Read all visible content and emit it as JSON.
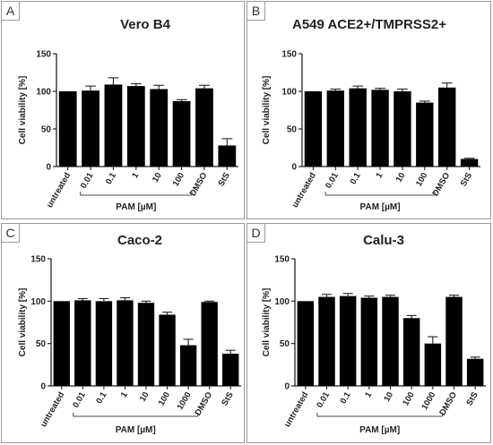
{
  "chart_data": [
    {
      "type": "bar",
      "panel_label": "A",
      "title": "Vero B4",
      "ylabel": "Cell viability [%]",
      "ylim": [
        0,
        150
      ],
      "yticks": [
        0,
        50,
        100,
        150
      ],
      "categories": [
        "untreated",
        "0.01",
        "0.1",
        "1",
        "10",
        "100",
        "DMSO",
        "StS"
      ],
      "values": [
        100,
        101,
        109,
        107,
        103,
        87,
        104,
        28
      ],
      "errors": [
        0,
        6,
        9,
        3,
        5,
        2,
        4,
        9
      ],
      "group_label": "PAM [µM]",
      "group_range": [
        1,
        5
      ],
      "bar_color": "#000000"
    },
    {
      "type": "bar",
      "panel_label": "B",
      "title": "A549 ACE2+/TMPRSS2+",
      "ylabel": "Cell viability [%]",
      "ylim": [
        0,
        150
      ],
      "yticks": [
        0,
        50,
        100,
        150
      ],
      "categories": [
        "untreated",
        "0.01",
        "0.1",
        "1",
        "10",
        "100",
        "DMSO",
        "StS"
      ],
      "values": [
        100,
        101,
        104,
        102,
        100,
        85,
        105,
        10
      ],
      "errors": [
        0,
        2,
        3,
        2,
        3,
        2,
        6,
        1
      ],
      "group_label": "PAM [µM]",
      "group_range": [
        1,
        5
      ],
      "bar_color": "#000000"
    },
    {
      "type": "bar",
      "panel_label": "C",
      "title": "Caco-2",
      "ylabel": "Cell viability [%]",
      "ylim": [
        0,
        150
      ],
      "yticks": [
        0,
        50,
        100,
        150
      ],
      "categories": [
        "untreated",
        "0.01",
        "0.1",
        "1",
        "10",
        "100",
        "1000",
        "DMSO",
        "StS"
      ],
      "values": [
        100,
        101,
        100,
        101,
        98,
        84,
        48,
        99,
        38
      ],
      "errors": [
        0,
        2,
        3,
        3,
        2,
        3,
        7,
        1,
        4
      ],
      "group_label": "PAM [µM]",
      "group_range": [
        1,
        6
      ],
      "bar_color": "#000000"
    },
    {
      "type": "bar",
      "panel_label": "D",
      "title": "Calu-3",
      "ylabel": "Cell viability [%]",
      "ylim": [
        0,
        150
      ],
      "yticks": [
        0,
        50,
        100,
        150
      ],
      "categories": [
        "untreated",
        "0.01",
        "0.1",
        "1",
        "10",
        "100",
        "1000",
        "DMSO",
        "StS"
      ],
      "values": [
        100,
        105,
        106,
        104,
        105,
        80,
        50,
        105,
        32
      ],
      "errors": [
        0,
        3,
        3,
        2,
        2,
        3,
        8,
        2,
        2
      ],
      "group_label": "PAM [µM]",
      "group_range": [
        1,
        6
      ],
      "bar_color": "#000000"
    }
  ]
}
